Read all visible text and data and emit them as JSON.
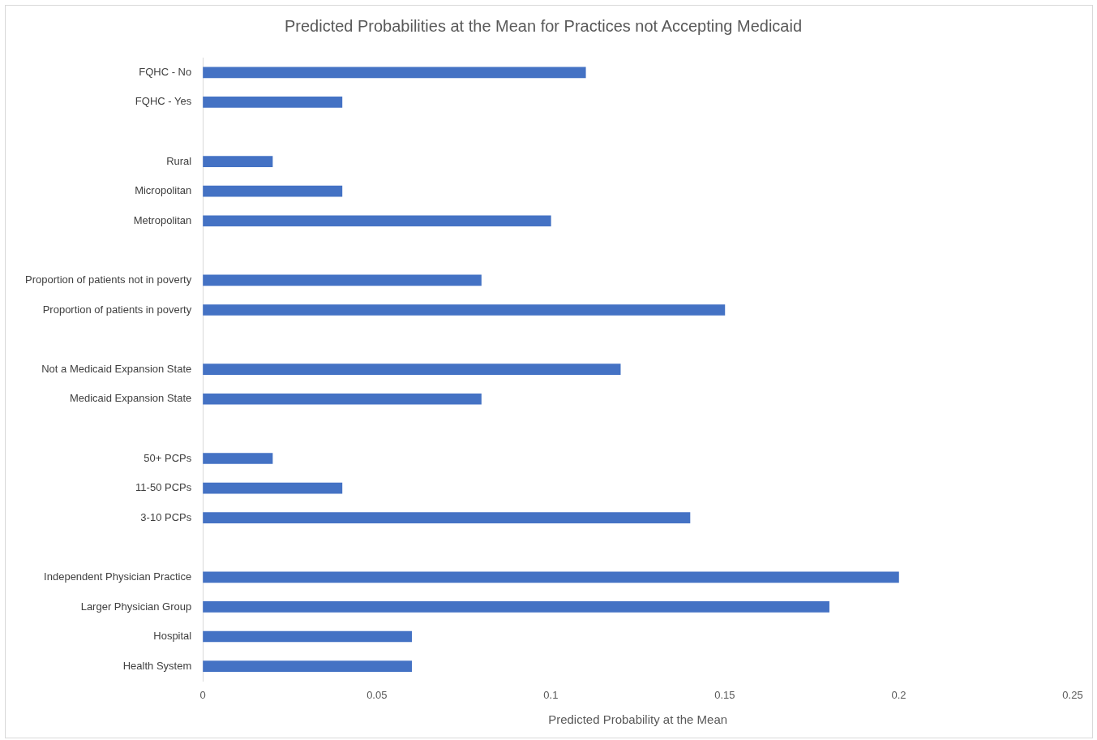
{
  "chart_data": {
    "type": "bar",
    "orientation": "horizontal",
    "title": "Predicted Probabilities at the Mean for Practices not Accepting Medicaid",
    "xlabel": "Predicted Probability at the Mean",
    "categories": [
      "FQHC - No",
      "FQHC - Yes",
      null,
      "Rural",
      "Micropolitan",
      "Metropolitan",
      null,
      "Proportion of patients not in poverty",
      "Proportion of patients in poverty",
      null,
      "Not a Medicaid Expansion State",
      "Medicaid Expansion State",
      null,
      "50+ PCPs",
      "11-50 PCPs",
      "3-10 PCPs",
      null,
      "Independent Physician Practice",
      "Larger Physician Group",
      "Hospital",
      "Health System"
    ],
    "values": [
      0.11,
      0.04,
      null,
      0.02,
      0.04,
      0.1,
      null,
      0.08,
      0.15,
      null,
      0.12,
      0.08,
      null,
      0.02,
      0.04,
      0.14,
      null,
      0.2,
      0.18,
      0.06,
      0.06
    ],
    "color": "#4472c4",
    "xlim": [
      0,
      0.25
    ],
    "xticks": [
      0,
      0.05,
      0.1,
      0.15,
      0.2,
      0.25
    ],
    "grid": false,
    "legend": false
  }
}
